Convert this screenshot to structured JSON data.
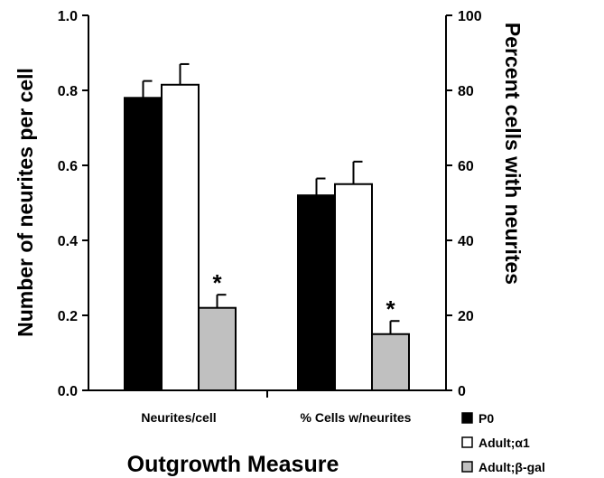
{
  "chart_data": {
    "type": "bar",
    "categories": [
      "Neurites/cell",
      "% Cells w/neurites"
    ],
    "series": [
      {
        "name": "P0",
        "color": "#000000",
        "values": [
          0.78,
          0.52
        ],
        "errors": [
          0.045,
          0.045
        ]
      },
      {
        "name": "Adult;α1",
        "color": "#ffffff",
        "values": [
          0.815,
          0.55
        ],
        "errors": [
          0.055,
          0.06
        ]
      },
      {
        "name": "Adult;β-gal",
        "color": "#c0c0c0",
        "values": [
          0.22,
          0.15
        ],
        "errors": [
          0.035,
          0.035
        ]
      }
    ],
    "significance_marker": "*",
    "marked_series": 2,
    "xlabel": "Outgrowth Measure",
    "ylabel": "Number of neurites per cell",
    "ylabel_right": "Percent cells with neurites",
    "ylim": [
      0,
      1.0
    ],
    "ylim_right": [
      0,
      100
    ],
    "yticks": [
      "0.0",
      "0.2",
      "0.4",
      "0.6",
      "0.8",
      "1.0"
    ],
    "yticks_right": [
      "0",
      "20",
      "40",
      "60",
      "80",
      "100"
    ],
    "grid": false,
    "legend_position": "bottom-right"
  }
}
